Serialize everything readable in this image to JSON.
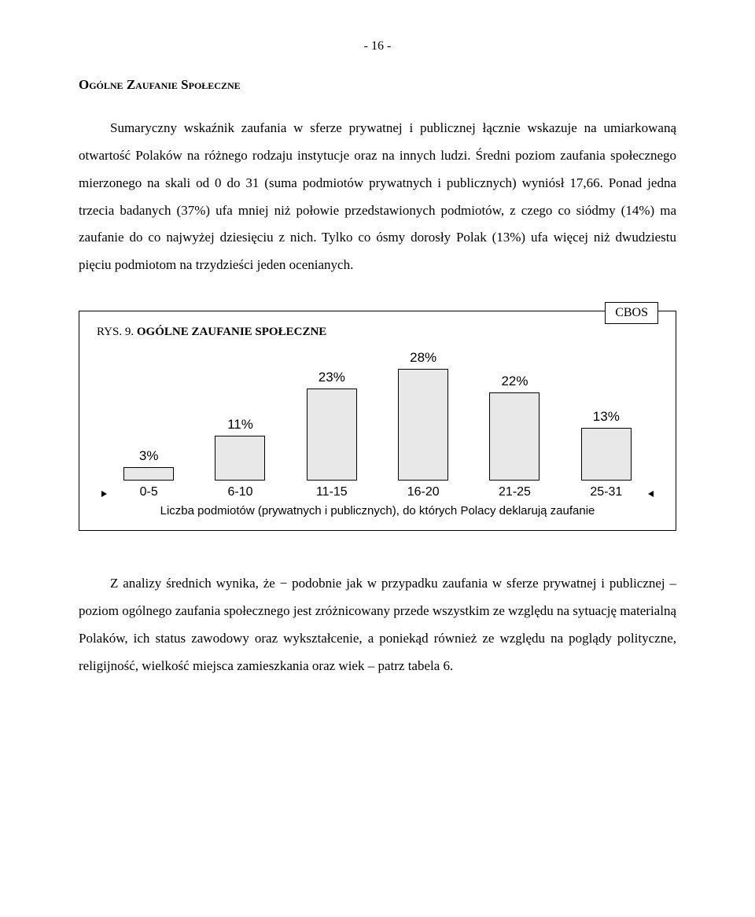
{
  "page_number": "- 16 -",
  "heading": "Ogólne Zaufanie Społeczne",
  "para1": "Sumaryczny wskaźnik zaufania w sferze prywatnej i publicznej łącznie wskazuje na umiarkowaną otwartość Polaków na różnego rodzaju instytucje oraz na innych ludzi. Średni poziom zaufania społecznego mierzonego na skali od 0 do 31 (suma podmiotów prywatnych i publicznych) wyniósł 17,66. Ponad jedna trzecia badanych (37%) ufa mniej niż połowie przedstawionych podmiotów, z czego co siódmy (14%) ma zaufanie do co najwyżej dziesięciu z nich. Tylko co ósmy dorosły Polak (13%) ufa więcej niż dwudziestu pięciu podmiotom na trzydzieści jeden ocenianych.",
  "cbos_label": "CBOS",
  "chart": {
    "title_prefix": "RYS. 9. ",
    "title_main": "OGÓLNE ZAUFANIE SPOŁECZNE",
    "type": "bar",
    "categories": [
      "0-5",
      "6-10",
      "11-15",
      "16-20",
      "21-25",
      "25-31"
    ],
    "values": [
      3,
      11,
      23,
      28,
      22,
      13
    ],
    "value_labels": [
      "3%",
      "11%",
      "23%",
      "28%",
      "22%",
      "13%"
    ],
    "bar_fill": "#e8e8e8",
    "bar_border": "#000000",
    "max_value": 28,
    "caption": "Liczba podmiotów (prywatnych i publicznych), do których Polacy deklarują zaufanie"
  },
  "para2": "Z analizy średnich wynika, że − podobnie jak w przypadku zaufania w sferze prywatnej i publicznej – poziom ogólnego zaufania społecznego jest zróżnicowany przede wszystkim ze względu na sytuację materialną Polaków, ich status zawodowy oraz wykształcenie, a poniekąd również ze względu na poglądy polityczne, religijność, wielkość miejsca zamieszkania oraz wiek – patrz tabela 6."
}
